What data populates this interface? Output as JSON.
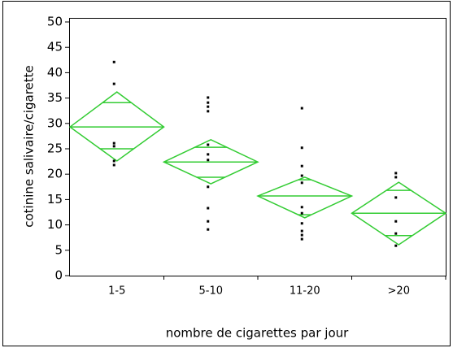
{
  "chart_data": {
    "type": "means-diamonds",
    "x_label": "nombre de cigarettes par jour",
    "y_label": "cotinine salivaire/cigarette",
    "categories": [
      "1-5",
      "5-10",
      "11-20",
      ">20"
    ],
    "ylim": [
      0,
      50
    ],
    "yticks": [
      0,
      5,
      10,
      15,
      20,
      25,
      30,
      35,
      40,
      45,
      50
    ],
    "color": "#33cc33",
    "point_color": "#000000",
    "means": [
      29.3,
      22.4,
      15.7,
      12.3
    ],
    "upper": [
      36.2,
      26.8,
      19.4,
      18.4
    ],
    "lower": [
      22.6,
      18.1,
      11.4,
      6.1
    ],
    "overlap_upper": [
      34.1,
      25.3,
      18.9,
      16.8
    ],
    "overlap_lower": [
      25.0,
      19.4,
      12.0,
      7.9
    ],
    "points": [
      [
        42.1,
        37.8,
        26.1,
        25.5,
        22.6,
        21.8
      ],
      [
        35.1,
        34.1,
        33.3,
        32.4,
        25.8,
        23.9,
        22.8,
        17.5,
        13.3,
        10.7,
        9.1
      ],
      [
        33.0,
        25.2,
        21.6,
        19.7,
        18.3,
        13.5,
        12.3,
        10.3,
        8.8,
        8.0,
        7.2
      ],
      [
        20.2,
        19.4,
        15.4,
        10.7,
        8.3,
        5.9
      ]
    ]
  }
}
